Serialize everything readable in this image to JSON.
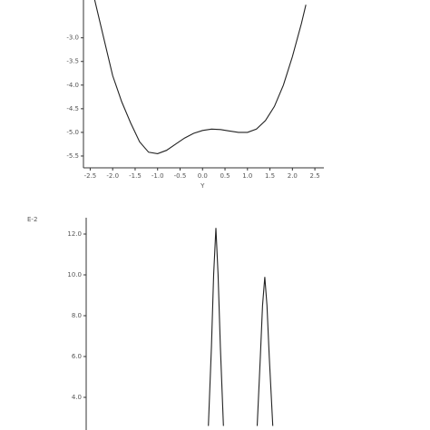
{
  "chart_data": [
    {
      "type": "line",
      "xlabel": "Y",
      "x": [
        -2.4,
        -2.2,
        -2.0,
        -1.8,
        -1.6,
        -1.4,
        -1.2,
        -1.0,
        -0.8,
        -0.6,
        -0.4,
        -0.2,
        0.0,
        0.2,
        0.4,
        0.6,
        0.8,
        1.0,
        1.2,
        1.4,
        1.6,
        1.8,
        2.0,
        2.2,
        2.3
      ],
      "series": [
        {
          "color": "#222222",
          "values": [
            -2.2,
            -3.0,
            -3.8,
            -4.35,
            -4.8,
            -5.2,
            -5.42,
            -5.45,
            -5.38,
            -5.25,
            -5.12,
            -5.02,
            -4.96,
            -4.93,
            -4.94,
            -4.97,
            -5.0,
            -5.0,
            -4.93,
            -4.75,
            -4.45,
            -4.0,
            -3.4,
            -2.7,
            -2.3
          ]
        }
      ],
      "xlim": [
        -2.65,
        2.7
      ],
      "ylim": [
        -5.75,
        -2.2
      ],
      "xticks": [
        -2.5,
        {
          "value": -2,
          "label": "-2.0"
        },
        -1.5,
        {
          "value": -1,
          "label": "-1.0"
        },
        -0.5,
        {
          "value": 0,
          "label": "0.0"
        },
        0.5,
        {
          "value": 1,
          "label": "1.0"
        },
        1.5,
        {
          "value": 2,
          "label": "2.0"
        },
        2.5
      ],
      "yticks": [
        {
          "value": -3,
          "label": "-3.0"
        },
        -3.5,
        {
          "value": -4,
          "label": "-4.0"
        },
        -4.5,
        {
          "value": -5,
          "label": "-5.0"
        },
        -5.5
      ]
    },
    {
      "type": "line",
      "annotation": "E-2",
      "x": [
        0.1,
        0.17,
        0.22,
        0.27,
        0.32,
        0.37,
        0.44,
        0.8,
        1.2,
        1.27,
        1.32,
        1.37,
        1.42,
        1.47,
        1.55
      ],
      "series": [
        {
          "color": "#222222",
          "values": [
            2.6,
            6.5,
            10.0,
            12.3,
            10.0,
            6.5,
            2.6,
            null,
            2.6,
            6.0,
            8.5,
            9.9,
            8.5,
            6.0,
            2.6
          ]
        }
      ],
      "xlim": [
        -2.65,
        2.7
      ],
      "ylim": [
        2.4,
        12.8
      ],
      "yticks": [
        {
          "value": 4,
          "label": "4.0"
        },
        {
          "value": 6,
          "label": "6.0"
        },
        {
          "value": 8,
          "label": "8.0"
        },
        {
          "value": 10,
          "label": "10.0"
        },
        {
          "value": 12,
          "label": "12.0"
        }
      ]
    }
  ]
}
